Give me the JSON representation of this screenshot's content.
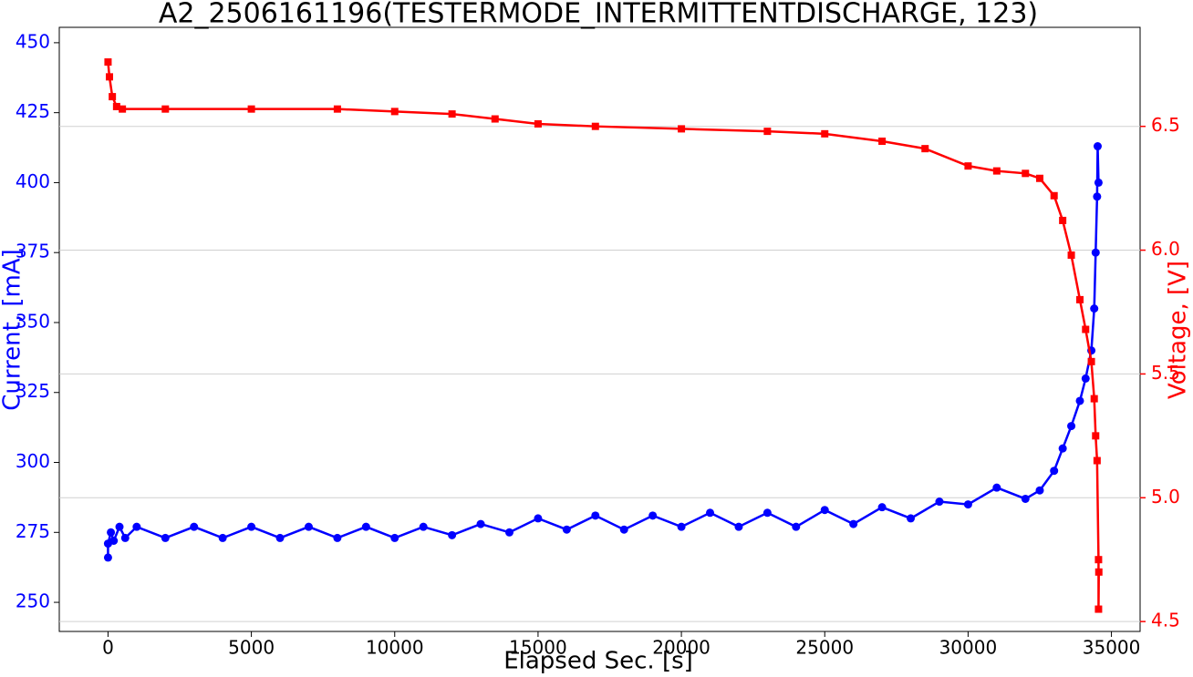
{
  "chart_data": {
    "type": "line",
    "title": "A2_2506161196(TESTERMODE_INTERMITTENTDISCHARGE, 123)",
    "x_label": "Elapsed Sec. [s]",
    "y_label": "Current, [mA]",
    "y2_label": "Voltage, [V]",
    "xlim": [
      -1700,
      36000
    ],
    "xticks": [
      0,
      5000,
      10000,
      15000,
      20000,
      25000,
      30000,
      35000
    ],
    "ylim": [
      239.6,
      455.5
    ],
    "yticks": [
      250,
      275,
      300,
      325,
      350,
      375,
      400,
      425,
      450
    ],
    "y2lim": [
      4.46,
      6.9
    ],
    "y2ticks": [
      {
        "value": 4.5,
        "label": "4.5"
      },
      {
        "value": 5,
        "label": "5.0"
      },
      5.5,
      {
        "value": 6,
        "label": "6.0"
      },
      6.5
    ],
    "grid": true,
    "series": [
      {
        "name": "Current",
        "color": "#0000ff",
        "marker": "circle",
        "x": [
          0,
          0,
          100,
          200,
          400,
          600,
          1000,
          2000,
          3000,
          4000,
          5000,
          6000,
          7000,
          8000,
          9000,
          10000,
          11000,
          12000,
          13000,
          14000,
          15000,
          16000,
          17000,
          18000,
          19000,
          20000,
          21000,
          22000,
          23000,
          24000,
          25000,
          26000,
          27000,
          28000,
          29000,
          30000,
          31000,
          32000,
          32500,
          33000,
          33300,
          33600,
          33900,
          34100,
          34300,
          34400,
          34450,
          34500,
          34520,
          34550
        ],
        "values": [
          266,
          271,
          275,
          272,
          277,
          273,
          277,
          273,
          277,
          273,
          277,
          273,
          277,
          273,
          277,
          273,
          277,
          274,
          278,
          275,
          280,
          276,
          281,
          276,
          281,
          277,
          282,
          277,
          282,
          277,
          283,
          278,
          284,
          280,
          286,
          285,
          291,
          287,
          290,
          297,
          305,
          313,
          322,
          330,
          340,
          355,
          375,
          395,
          413,
          400
        ]
      },
      {
        "name": "Voltage",
        "color": "#ff0000",
        "marker": "square",
        "axis": "y2",
        "x": [
          0,
          50,
          150,
          300,
          500,
          2000,
          5000,
          8000,
          10000,
          12000,
          13500,
          15000,
          17000,
          20000,
          23000,
          25000,
          27000,
          28500,
          30000,
          31000,
          32000,
          32500,
          33000,
          33300,
          33600,
          33900,
          34100,
          34300,
          34400,
          34450,
          34500,
          34550,
          34550,
          34560
        ],
        "values": [
          6.76,
          6.7,
          6.62,
          6.58,
          6.57,
          6.57,
          6.57,
          6.57,
          6.56,
          6.55,
          6.53,
          6.51,
          6.5,
          6.49,
          6.48,
          6.47,
          6.44,
          6.41,
          6.34,
          6.32,
          6.31,
          6.29,
          6.22,
          6.12,
          5.98,
          5.8,
          5.68,
          5.55,
          5.4,
          5.25,
          5.15,
          4.75,
          4.55,
          4.7
        ]
      }
    ]
  }
}
